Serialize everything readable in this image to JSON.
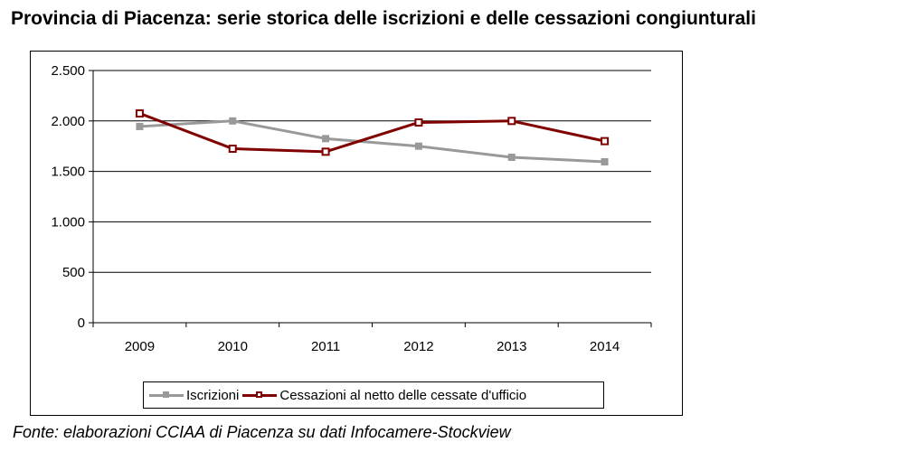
{
  "title": "Provincia di Piacenza: serie storica delle iscrizioni e delle cessazioni congiunturali",
  "source": "Fonte: elaborazioni CCIAA di Piacenza su dati Infocamere-Stockview",
  "chart_data": {
    "type": "line",
    "title": "Provincia di Piacenza: serie storica delle iscrizioni e delle cessazioni congiunturali",
    "xlabel": "",
    "ylabel": "",
    "categories": [
      "2009",
      "2010",
      "2011",
      "2012",
      "2013",
      "2014"
    ],
    "ylim": [
      0,
      2500
    ],
    "yticks": [
      0,
      500,
      1000,
      1500,
      2000,
      2500
    ],
    "ytick_labels": [
      "0",
      "500",
      "1.000",
      "1.500",
      "2.000",
      "2.500"
    ],
    "grid": "horizontal",
    "legend_position": "bottom",
    "series": [
      {
        "name": "Iscrizioni",
        "color": "#999999",
        "marker": "square",
        "values": [
          1945,
          2000,
          1825,
          1750,
          1640,
          1595
        ]
      },
      {
        "name": "Cessazioni al netto delle cessate d'ufficio",
        "color": "#800000",
        "marker": "square-hollow",
        "values": [
          2075,
          1725,
          1695,
          1985,
          2000,
          1800
        ]
      }
    ]
  }
}
